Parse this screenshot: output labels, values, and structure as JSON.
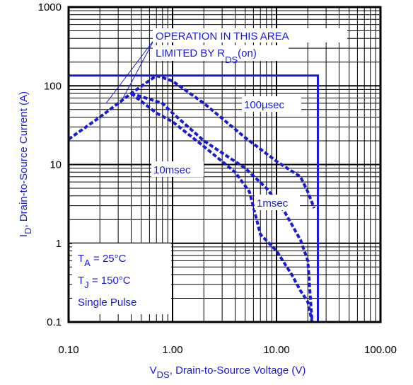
{
  "chart_data": {
    "type": "line",
    "x_scale": "log",
    "y_scale": "log",
    "xlim": [
      0.1,
      100
    ],
    "ylim": [
      0.1,
      1000
    ],
    "x_ticks": [
      "0.10",
      "1.00",
      "10.00",
      "100.00"
    ],
    "y_ticks": [
      "0.1",
      "1",
      "10",
      "100",
      "1000"
    ],
    "grid": true,
    "xlabel": {
      "main": "V",
      "sub": "DS",
      "rest": ", Drain-to-Source Voltage (V)"
    },
    "ylabel": {
      "main": "I",
      "sub": "D",
      "rest": ",  Drain-to-Source Current (A)"
    },
    "annotations": {
      "rds_line1": "OPERATION IN THIS AREA",
      "rds_line2": "LIMITED BY R",
      "rds_sub": "DS",
      "rds_rest": "(on)",
      "label_100us": "100µsec",
      "label_1ms": "1msec",
      "label_10ms": "10msec",
      "ta_main": "T",
      "ta_sub": "A",
      "ta_rest": " = 25°C",
      "tj_main": "T",
      "tj_sub": "J",
      "tj_rest": " = 150°C",
      "pulse": "Single Pulse"
    },
    "limit_box": {
      "current": 135,
      "voltage": 25
    },
    "series": [
      {
        "x": [
          0.1,
          0.2,
          0.4,
          0.7,
          1.0,
          2.0,
          5.0,
          10.0,
          17.0,
          20.0,
          23.0
        ],
        "y": [
          21,
          40,
          80,
          135,
          115,
          60,
          22,
          11,
          7,
          4.5,
          2.8
        ]
      },
      {
        "x": [
          0.4,
          0.8,
          1.0,
          2.0,
          5.0,
          8.0,
          12.0,
          17.0,
          20.0,
          22.0
        ],
        "y": [
          80,
          60,
          45,
          20,
          9,
          5,
          2.5,
          1.1,
          0.6,
          0.1
        ]
      },
      {
        "x": [
          0.4,
          0.7,
          1.0,
          2.0,
          4.0,
          5.5,
          7.0,
          10.0,
          14.0,
          17.0,
          20.0,
          22.0
        ],
        "y": [
          80,
          45,
          35,
          17,
          8,
          4.5,
          1.3,
          0.8,
          0.4,
          0.25,
          0.18,
          0.1
        ]
      }
    ],
    "colors": {
      "accent": "#1a1ad6",
      "grid": "#000000"
    }
  }
}
